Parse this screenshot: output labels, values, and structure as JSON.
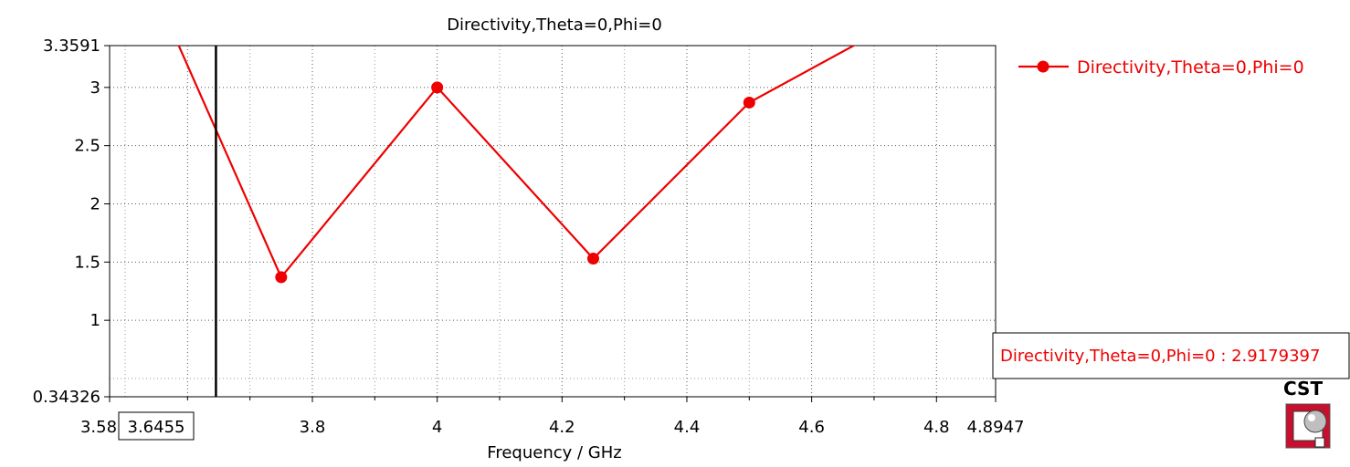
{
  "chart_data": {
    "type": "line",
    "title": "Directivity,Theta=0,Phi=0",
    "xlabel": "Frequency / GHz",
    "ylabel": "",
    "xlim": [
      3.58,
      4.8947
    ],
    "ylim": [
      0.34326,
      3.3591
    ],
    "x_ticks": [
      "3.58",
      "3.8",
      "4",
      "4.2",
      "4.4",
      "4.6",
      "4.8",
      "4.8947"
    ],
    "y_ticks": [
      "0.34326",
      "1",
      "1.5",
      "2",
      "2.5",
      "3",
      "3.3591"
    ],
    "grid": true,
    "legend_position": "right",
    "series": [
      {
        "name": "Directivity,Theta=0,Phi=0",
        "color": "#ee0000",
        "x": [
          3.5,
          3.75,
          4.0,
          4.25,
          4.5,
          4.75
        ],
        "y": [
          4.4,
          1.37,
          3.0,
          1.53,
          2.87,
          3.6
        ],
        "markers_visible": [
          3.75,
          4.0,
          4.25,
          4.5
        ]
      }
    ],
    "marker_line": {
      "x": 3.6455,
      "x_label": "3.6455",
      "readout_label": "Directivity,Theta=0,Phi=0 : 2.9179397",
      "readout_value": 2.9179397
    }
  },
  "logo": {
    "text": "CST"
  }
}
